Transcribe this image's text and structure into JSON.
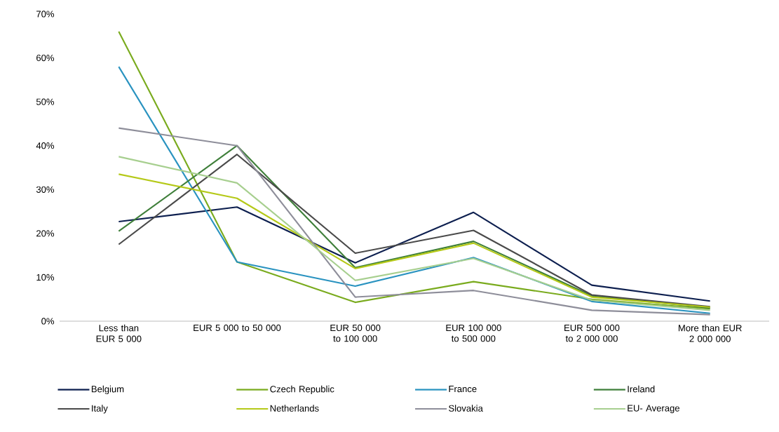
{
  "chart_data": {
    "type": "line",
    "categories": [
      "Less than EUR 5 000",
      "EUR 5 000 to 50 000",
      "EUR 50 000 to 100 000",
      "EUR 100 000 to 500 000",
      "EUR 500 000 to 2 000 000",
      "More than EUR 2 000 000"
    ],
    "series": [
      {
        "name": "Belgium",
        "color": "#0d1f4f",
        "values": [
          22.7,
          26,
          13.3,
          24.8,
          8.2,
          4.6
        ]
      },
      {
        "name": "Czech Republic",
        "color": "#7aab1e",
        "values": [
          66,
          13.5,
          4.3,
          9,
          5,
          2.8
        ]
      },
      {
        "name": "France",
        "color": "#2a93c0",
        "values": [
          58,
          13.5,
          8,
          14.5,
          4.5,
          1.8
        ]
      },
      {
        "name": "Ireland",
        "color": "#3f7f3a",
        "values": [
          20.5,
          40,
          12.2,
          18.2,
          5.8,
          3
        ]
      },
      {
        "name": "Italy",
        "color": "#4a4a4a",
        "values": [
          17.5,
          38,
          15.5,
          20.7,
          6,
          3.3
        ]
      },
      {
        "name": "Netherlands",
        "color": "#b5c918",
        "values": [
          33.5,
          28,
          12,
          17.8,
          5.5,
          3.2
        ]
      },
      {
        "name": "Slovakia",
        "color": "#8e8e9a",
        "values": [
          44,
          40,
          5.5,
          7,
          2.5,
          1.5
        ]
      },
      {
        "name": "EU- Average",
        "color": "#a7cf8f",
        "values": [
          37.5,
          31.5,
          9.3,
          14.3,
          4.8,
          2.5
        ]
      }
    ],
    "ylim": [
      0,
      70
    ],
    "yticks": [
      {
        "value": 0,
        "label": "0%"
      },
      {
        "value": 10,
        "label": "10%"
      },
      {
        "value": 20,
        "label": "20%"
      },
      {
        "value": 30,
        "label": "30%"
      },
      {
        "value": 40,
        "label": "40%"
      },
      {
        "value": 50,
        "label": "50%"
      },
      {
        "value": 60,
        "label": "60%"
      },
      {
        "value": 70,
        "label": "70%"
      }
    ],
    "grid": false,
    "legend": "bottom",
    "marker": "none",
    "line_style": "solid"
  }
}
